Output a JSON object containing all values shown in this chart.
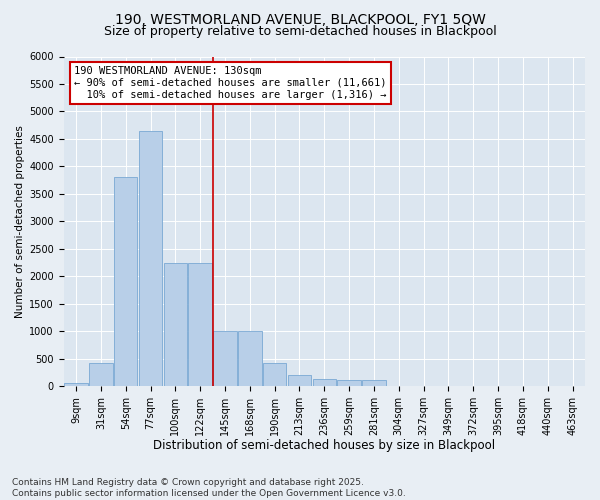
{
  "title1": "190, WESTMORLAND AVENUE, BLACKPOOL, FY1 5QW",
  "title2": "Size of property relative to semi-detached houses in Blackpool",
  "xlabel": "Distribution of semi-detached houses by size in Blackpool",
  "ylabel": "Number of semi-detached properties",
  "categories": [
    "9sqm",
    "31sqm",
    "54sqm",
    "77sqm",
    "100sqm",
    "122sqm",
    "145sqm",
    "168sqm",
    "190sqm",
    "213sqm",
    "236sqm",
    "259sqm",
    "281sqm",
    "304sqm",
    "327sqm",
    "349sqm",
    "372sqm",
    "395sqm",
    "418sqm",
    "440sqm",
    "463sqm"
  ],
  "values": [
    50,
    430,
    3800,
    4650,
    2250,
    2250,
    1000,
    1000,
    420,
    200,
    130,
    110,
    110,
    0,
    0,
    0,
    0,
    0,
    0,
    0,
    0
  ],
  "bar_color": "#b8cfe8",
  "bar_edge_color": "#7aa8d4",
  "vline_x": 5.5,
  "vline_color": "#cc0000",
  "annotation_text": "190 WESTMORLAND AVENUE: 130sqm\n← 90% of semi-detached houses are smaller (11,661)\n  10% of semi-detached houses are larger (1,316) →",
  "annotation_box_color": "#ffffff",
  "annotation_box_edge": "#cc0000",
  "ylim": [
    0,
    6000
  ],
  "yticks": [
    0,
    500,
    1000,
    1500,
    2000,
    2500,
    3000,
    3500,
    4000,
    4500,
    5000,
    5500,
    6000
  ],
  "bg_color": "#e8eef4",
  "plot_bg_color": "#dce6f0",
  "footnote": "Contains HM Land Registry data © Crown copyright and database right 2025.\nContains public sector information licensed under the Open Government Licence v3.0.",
  "title1_fontsize": 10,
  "title2_fontsize": 9,
  "xlabel_fontsize": 8.5,
  "ylabel_fontsize": 7.5,
  "tick_fontsize": 7,
  "footnote_fontsize": 6.5,
  "annot_fontsize": 7.5
}
